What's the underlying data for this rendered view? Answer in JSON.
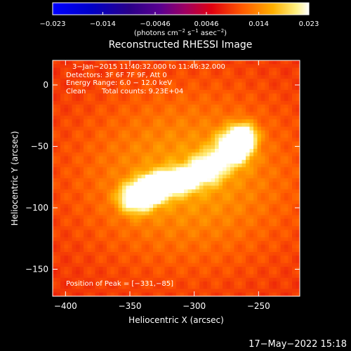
{
  "chart_data": {
    "type": "heatmap",
    "title": "Reconstructed RHESSI Image",
    "xlabel": "Heliocentric X (arcsec)",
    "ylabel": "Heliocentric Y (arcsec)",
    "xlim": [
      -410,
      -218
    ],
    "ylim": [
      -172,
      20
    ],
    "x_ticks": [
      -400,
      -350,
      -300,
      -250
    ],
    "y_ticks": [
      0,
      -50,
      -100,
      -150
    ],
    "x_tick_labels": [
      "−400",
      "−350",
      "−300",
      "−250"
    ],
    "y_tick_labels": [
      "0",
      "−50",
      "−100",
      "−150"
    ],
    "colorbar": {
      "range": [
        -0.023,
        0.023
      ],
      "ticks": [
        -0.023,
        -0.014,
        -0.0046,
        0.0046,
        0.014,
        0.023
      ],
      "tick_labels": [
        "−0.023",
        "−0.014",
        "−0.0046",
        "0.0046",
        "0.014",
        "0.023"
      ],
      "label_main": "(photons cm",
      "label_exp1": "−2",
      "label_mid": " s",
      "label_exp2": "−1",
      "label_mid2": " asec",
      "label_exp3": "−2",
      "label_end": ")"
    },
    "annotations": {
      "time_range": "3−Jan−2015 11:40:32.000 to 11:46:32.000",
      "detectors": "Detectors: 3F 6F 7F 9F, Att 0",
      "energy": "Energy Range: 6.0 − 12.0 keV",
      "clean": "Clean",
      "total_counts": "Total counts: 9.23E+04",
      "peak": "Position of Peak = [−331,−85]"
    },
    "peak": {
      "x": -331,
      "y": -85
    },
    "sources": [
      {
        "x": -331,
        "y": -84,
        "amp": 0.023,
        "sx": 8,
        "sy": 7
      },
      {
        "x": -345,
        "y": -92,
        "amp": 0.017,
        "sx": 9,
        "sy": 8
      },
      {
        "x": -312,
        "y": -78,
        "amp": 0.015,
        "sx": 10,
        "sy": 7
      },
      {
        "x": -290,
        "y": -68,
        "amp": 0.014,
        "sx": 9,
        "sy": 8
      },
      {
        "x": -270,
        "y": -52,
        "amp": 0.018,
        "sx": 9,
        "sy": 9
      },
      {
        "x": -262,
        "y": -42,
        "amp": 0.016,
        "sx": 7,
        "sy": 7
      }
    ],
    "background_level": 0.0085,
    "diffuse_halo": {
      "x": -305,
      "y": -75,
      "amp": 0.007,
      "sx": 60,
      "sy": 50
    }
  },
  "footer": {
    "timestamp": "17−May−2022 15:18"
  }
}
